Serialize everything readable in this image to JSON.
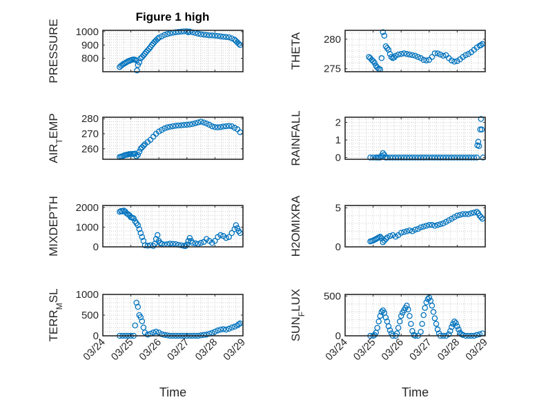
{
  "figure": {
    "title": "Figure 1 high",
    "xlabel": "Time"
  },
  "colors": {
    "marker": "#0072bd",
    "axis": "#262626",
    "grid": "#c8c8c8"
  },
  "chart_data": [
    {
      "type": "scatter",
      "title": "Figure 1 high",
      "xlabel": "",
      "ylabel": "PRESSURE",
      "xlim": [
        0,
        5
      ],
      "ylim": [
        700,
        1010
      ],
      "yticks": [
        800,
        900,
        1000
      ],
      "x": [
        0.6,
        0.65,
        0.7,
        0.75,
        0.8,
        0.85,
        0.9,
        0.95,
        1.0,
        1.05,
        1.1,
        1.15,
        1.2,
        1.22,
        1.25,
        1.3,
        1.35,
        1.4,
        1.45,
        1.5,
        1.55,
        1.6,
        1.65,
        1.7,
        1.75,
        1.8,
        1.85,
        1.9,
        1.95,
        2.0,
        2.1,
        2.2,
        2.3,
        2.4,
        2.5,
        2.6,
        2.7,
        2.8,
        2.9,
        3.0,
        3.05,
        3.1,
        3.2,
        3.3,
        3.4,
        3.5,
        3.6,
        3.7,
        3.8,
        3.9,
        4.0,
        4.1,
        4.2,
        4.3,
        4.4,
        4.5,
        4.6,
        4.7,
        4.75,
        4.8,
        4.85,
        4.9
      ],
      "y": [
        735,
        745,
        752,
        760,
        765,
        772,
        778,
        782,
        787,
        790,
        792,
        790,
        785,
        710,
        750,
        770,
        800,
        810,
        822,
        835,
        848,
        860,
        872,
        885,
        900,
        912,
        925,
        935,
        945,
        955,
        965,
        975,
        982,
        988,
        992,
        996,
        998,
        1000,
        1002,
        1003,
        995,
        1000,
        995,
        990,
        985,
        980,
        978,
        975,
        973,
        972,
        970,
        968,
        965,
        962,
        960,
        958,
        950,
        940,
        930,
        920,
        910,
        900
      ]
    },
    {
      "type": "scatter",
      "title": "",
      "xlabel": "",
      "ylabel": "THETA",
      "xlim": [
        0,
        5
      ],
      "ylim": [
        274.5,
        281.5
      ],
      "yticks": [
        275,
        280
      ],
      "x": [
        0.85,
        0.9,
        0.95,
        1.0,
        1.05,
        1.1,
        1.15,
        1.2,
        1.25,
        1.3,
        1.35,
        1.4,
        1.45,
        1.5,
        1.55,
        1.6,
        1.65,
        1.7,
        1.75,
        1.8,
        1.9,
        2.0,
        2.1,
        2.2,
        2.3,
        2.4,
        2.5,
        2.6,
        2.7,
        2.8,
        2.9,
        3.0,
        3.1,
        3.2,
        3.3,
        3.4,
        3.5,
        3.6,
        3.7,
        3.8,
        3.9,
        4.0,
        4.1,
        4.2,
        4.3,
        4.4,
        4.5,
        4.6,
        4.7,
        4.8,
        4.85,
        4.9
      ],
      "y": [
        277.0,
        276.8,
        276.5,
        276.3,
        276.0,
        275.5,
        275.2,
        275.0,
        274.9,
        276.8,
        281.2,
        280.6,
        278.8,
        278.5,
        278.2,
        277.5,
        277.0,
        276.8,
        276.9,
        277.2,
        277.4,
        277.5,
        277.6,
        277.5,
        277.4,
        277.3,
        277.2,
        277.0,
        276.8,
        276.5,
        276.4,
        276.5,
        277.0,
        277.6,
        277.6,
        277.4,
        277.2,
        277.3,
        276.8,
        276.4,
        276.2,
        276.3,
        276.6,
        277.0,
        277.3,
        277.5,
        277.8,
        278.2,
        278.6,
        278.9,
        279.0,
        279.2
      ]
    },
    {
      "type": "scatter",
      "title": "",
      "xlabel": "",
      "ylabel": "AIR_TEMP",
      "xlim": [
        0,
        5
      ],
      "ylim": [
        253,
        281
      ],
      "yticks": [
        260,
        270,
        280
      ],
      "x": [
        0.6,
        0.65,
        0.7,
        0.75,
        0.8,
        0.85,
        0.9,
        0.95,
        1.0,
        1.05,
        1.1,
        1.15,
        1.2,
        1.25,
        1.3,
        1.35,
        1.4,
        1.45,
        1.5,
        1.6,
        1.7,
        1.8,
        1.9,
        2.0,
        2.1,
        2.2,
        2.3,
        2.4,
        2.5,
        2.6,
        2.7,
        2.8,
        2.9,
        3.0,
        3.1,
        3.2,
        3.3,
        3.4,
        3.5,
        3.6,
        3.7,
        3.8,
        3.9,
        4.0,
        4.1,
        4.2,
        4.3,
        4.4,
        4.5,
        4.6,
        4.7,
        4.8,
        4.9
      ],
      "y": [
        254.5,
        254.8,
        255.0,
        255.5,
        255.8,
        256.0,
        256.2,
        256.5,
        256.4,
        256.6,
        256.5,
        256.8,
        255.0,
        256.0,
        258.0,
        260.0,
        261.0,
        262.0,
        263.0,
        264.5,
        266.0,
        268.0,
        270.0,
        271.5,
        272.5,
        273.5,
        274.2,
        274.6,
        275.0,
        275.3,
        275.5,
        275.6,
        275.8,
        276.0,
        276.2,
        276.5,
        277.0,
        277.5,
        278.0,
        277.5,
        276.8,
        276.0,
        275.0,
        274.5,
        274.2,
        274.5,
        274.8,
        275.0,
        275.2,
        275.0,
        274.0,
        273.0,
        271.0
      ]
    },
    {
      "type": "scatter",
      "title": "",
      "xlabel": "",
      "ylabel": "RAINFALL",
      "xlim": [
        0,
        5
      ],
      "ylim": [
        -0.1,
        2.3
      ],
      "yticks": [
        0,
        1,
        2
      ],
      "x": [
        0.9,
        1.0,
        1.1,
        1.15,
        1.2,
        1.25,
        1.3,
        1.35,
        1.4,
        1.45,
        1.5,
        1.6,
        1.7,
        1.8,
        1.9,
        2.0,
        2.1,
        2.2,
        2.3,
        2.4,
        2.5,
        2.6,
        2.7,
        2.8,
        2.9,
        3.0,
        3.1,
        3.2,
        3.3,
        3.4,
        3.5,
        3.6,
        3.7,
        3.8,
        3.9,
        4.0,
        4.1,
        4.2,
        4.3,
        4.4,
        4.5,
        4.6,
        4.7,
        4.72,
        4.75,
        4.78,
        4.82,
        4.85,
        4.88,
        4.92
      ],
      "y": [
        0,
        0,
        0,
        0,
        0,
        0,
        0.1,
        0.25,
        0.15,
        0,
        0,
        0,
        0,
        0,
        0,
        0,
        0,
        0,
        0,
        0,
        0,
        0,
        0,
        0,
        0,
        0,
        0,
        0,
        0,
        0,
        0,
        0,
        0,
        0,
        0,
        0,
        0,
        0,
        0,
        0,
        0,
        0,
        0,
        0.7,
        0.9,
        0.65,
        1.6,
        2.2,
        1.6,
        0
      ]
    },
    {
      "type": "scatter",
      "title": "",
      "xlabel": "",
      "ylabel": "MIXDEPTH",
      "xlim": [
        0,
        5
      ],
      "ylim": [
        0,
        2100
      ],
      "yticks": [
        0,
        1000,
        2000
      ],
      "x": [
        0.6,
        0.65,
        0.7,
        0.75,
        0.8,
        0.85,
        0.9,
        0.95,
        1.0,
        1.05,
        1.1,
        1.15,
        1.2,
        1.25,
        1.3,
        1.35,
        1.4,
        1.45,
        1.5,
        1.6,
        1.7,
        1.8,
        1.85,
        1.9,
        1.95,
        2.0,
        2.05,
        2.1,
        2.2,
        2.3,
        2.4,
        2.5,
        2.6,
        2.7,
        2.8,
        2.9,
        2.95,
        3.0,
        3.05,
        3.1,
        3.15,
        3.2,
        3.3,
        3.4,
        3.5,
        3.6,
        3.7,
        3.8,
        3.9,
        4.0,
        4.1,
        4.2,
        4.3,
        4.4,
        4.5,
        4.6,
        4.7,
        4.75,
        4.8,
        4.85,
        4.9
      ],
      "y": [
        1780,
        1820,
        1800,
        1840,
        1790,
        1700,
        1650,
        1600,
        1500,
        1480,
        1450,
        1300,
        1200,
        1100,
        900,
        700,
        500,
        300,
        80,
        60,
        80,
        50,
        150,
        400,
        600,
        300,
        200,
        150,
        120,
        130,
        160,
        150,
        140,
        100,
        80,
        50,
        40,
        120,
        300,
        450,
        300,
        200,
        180,
        150,
        200,
        250,
        400,
        300,
        200,
        300,
        500,
        600,
        550,
        450,
        500,
        700,
        900,
        1100,
        950,
        800,
        700
      ]
    },
    {
      "type": "scatter",
      "title": "",
      "xlabel": "",
      "ylabel": "H2OMIXRA",
      "xlim": [
        0,
        5
      ],
      "ylim": [
        0,
        5.3
      ],
      "yticks": [
        0,
        5
      ],
      "x": [
        0.9,
        0.95,
        1.0,
        1.05,
        1.1,
        1.15,
        1.2,
        1.25,
        1.3,
        1.35,
        1.4,
        1.45,
        1.5,
        1.6,
        1.7,
        1.8,
        1.9,
        2.0,
        2.1,
        2.2,
        2.3,
        2.4,
        2.5,
        2.6,
        2.7,
        2.8,
        2.9,
        3.0,
        3.1,
        3.2,
        3.3,
        3.4,
        3.5,
        3.6,
        3.7,
        3.8,
        3.9,
        4.0,
        4.1,
        4.2,
        4.3,
        4.4,
        4.5,
        4.6,
        4.7,
        4.75,
        4.8,
        4.85,
        4.9
      ],
      "y": [
        0.7,
        0.75,
        0.8,
        0.9,
        1.0,
        1.1,
        1.2,
        1.3,
        1.1,
        0.6,
        0.8,
        1.0,
        1.2,
        1.4,
        1.5,
        1.3,
        1.5,
        1.8,
        1.9,
        2.0,
        2.1,
        2.0,
        2.2,
        2.3,
        2.5,
        2.6,
        2.7,
        2.8,
        2.8,
        2.7,
        2.8,
        2.9,
        3.0,
        3.2,
        3.4,
        3.6,
        3.8,
        4.0,
        4.1,
        4.2,
        4.2,
        4.2,
        4.3,
        4.4,
        4.5,
        4.3,
        4.0,
        3.8,
        3.6
      ]
    },
    {
      "type": "scatter",
      "title": "",
      "xlabel": "Time",
      "ylabel": "TERR_MSL",
      "xlim": [
        0,
        5
      ],
      "ylim": [
        0,
        1000
      ],
      "yticks": [
        0,
        500,
        1000
      ],
      "xticklabels": [
        "03/24",
        "03/25",
        "03/26",
        "03/27",
        "03/28",
        "03/29"
      ],
      "x": [
        0.6,
        0.7,
        0.8,
        0.9,
        1.0,
        1.1,
        1.15,
        1.2,
        1.25,
        1.3,
        1.35,
        1.4,
        1.45,
        1.5,
        1.6,
        1.7,
        1.8,
        1.9,
        2.0,
        2.1,
        2.2,
        2.3,
        2.4,
        2.5,
        2.6,
        2.7,
        2.8,
        2.9,
        3.0,
        3.1,
        3.2,
        3.3,
        3.4,
        3.5,
        3.6,
        3.7,
        3.8,
        3.9,
        4.0,
        4.1,
        4.2,
        4.3,
        4.4,
        4.5,
        4.6,
        4.7,
        4.8,
        4.85,
        4.9
      ],
      "y": [
        0,
        0,
        0,
        0,
        0,
        0,
        250,
        800,
        700,
        500,
        450,
        350,
        200,
        80,
        30,
        50,
        80,
        100,
        80,
        40,
        20,
        10,
        0,
        0,
        0,
        0,
        0,
        0,
        0,
        0,
        0,
        0,
        0,
        10,
        20,
        30,
        50,
        70,
        100,
        130,
        150,
        160,
        150,
        170,
        200,
        220,
        250,
        280,
        300
      ]
    },
    {
      "type": "scatter",
      "title": "",
      "xlabel": "Time",
      "ylabel": "SUN_FLUX",
      "xlim": [
        0,
        5
      ],
      "ylim": [
        0,
        520
      ],
      "yticks": [
        0,
        500
      ],
      "xticklabels": [
        "03/24",
        "03/25",
        "03/26",
        "03/27",
        "03/28",
        "03/29"
      ],
      "x": [
        0.9,
        1.0,
        1.05,
        1.1,
        1.15,
        1.2,
        1.25,
        1.3,
        1.35,
        1.4,
        1.45,
        1.5,
        1.55,
        1.6,
        1.65,
        1.7,
        1.8,
        1.85,
        1.9,
        1.95,
        2.0,
        2.05,
        2.1,
        2.15,
        2.2,
        2.25,
        2.3,
        2.35,
        2.4,
        2.45,
        2.5,
        2.6,
        2.7,
        2.75,
        2.8,
        2.85,
        2.9,
        2.95,
        3.0,
        3.05,
        3.1,
        3.15,
        3.2,
        3.25,
        3.3,
        3.35,
        3.4,
        3.5,
        3.6,
        3.7,
        3.75,
        3.8,
        3.85,
        3.9,
        3.95,
        4.0,
        4.05,
        4.1,
        4.15,
        4.2,
        4.3,
        4.4,
        4.5,
        4.6,
        4.7,
        4.8,
        4.9
      ],
      "y": [
        0,
        0,
        10,
        40,
        100,
        180,
        250,
        300,
        320,
        290,
        230,
        180,
        120,
        70,
        30,
        0,
        0,
        30,
        100,
        180,
        250,
        290,
        320,
        350,
        380,
        330,
        250,
        150,
        60,
        10,
        0,
        0,
        50,
        150,
        260,
        350,
        420,
        460,
        480,
        440,
        380,
        300,
        220,
        150,
        80,
        30,
        0,
        0,
        0,
        20,
        60,
        110,
        150,
        180,
        160,
        120,
        80,
        40,
        20,
        10,
        0,
        0,
        0,
        0,
        10,
        20,
        30
      ]
    }
  ]
}
